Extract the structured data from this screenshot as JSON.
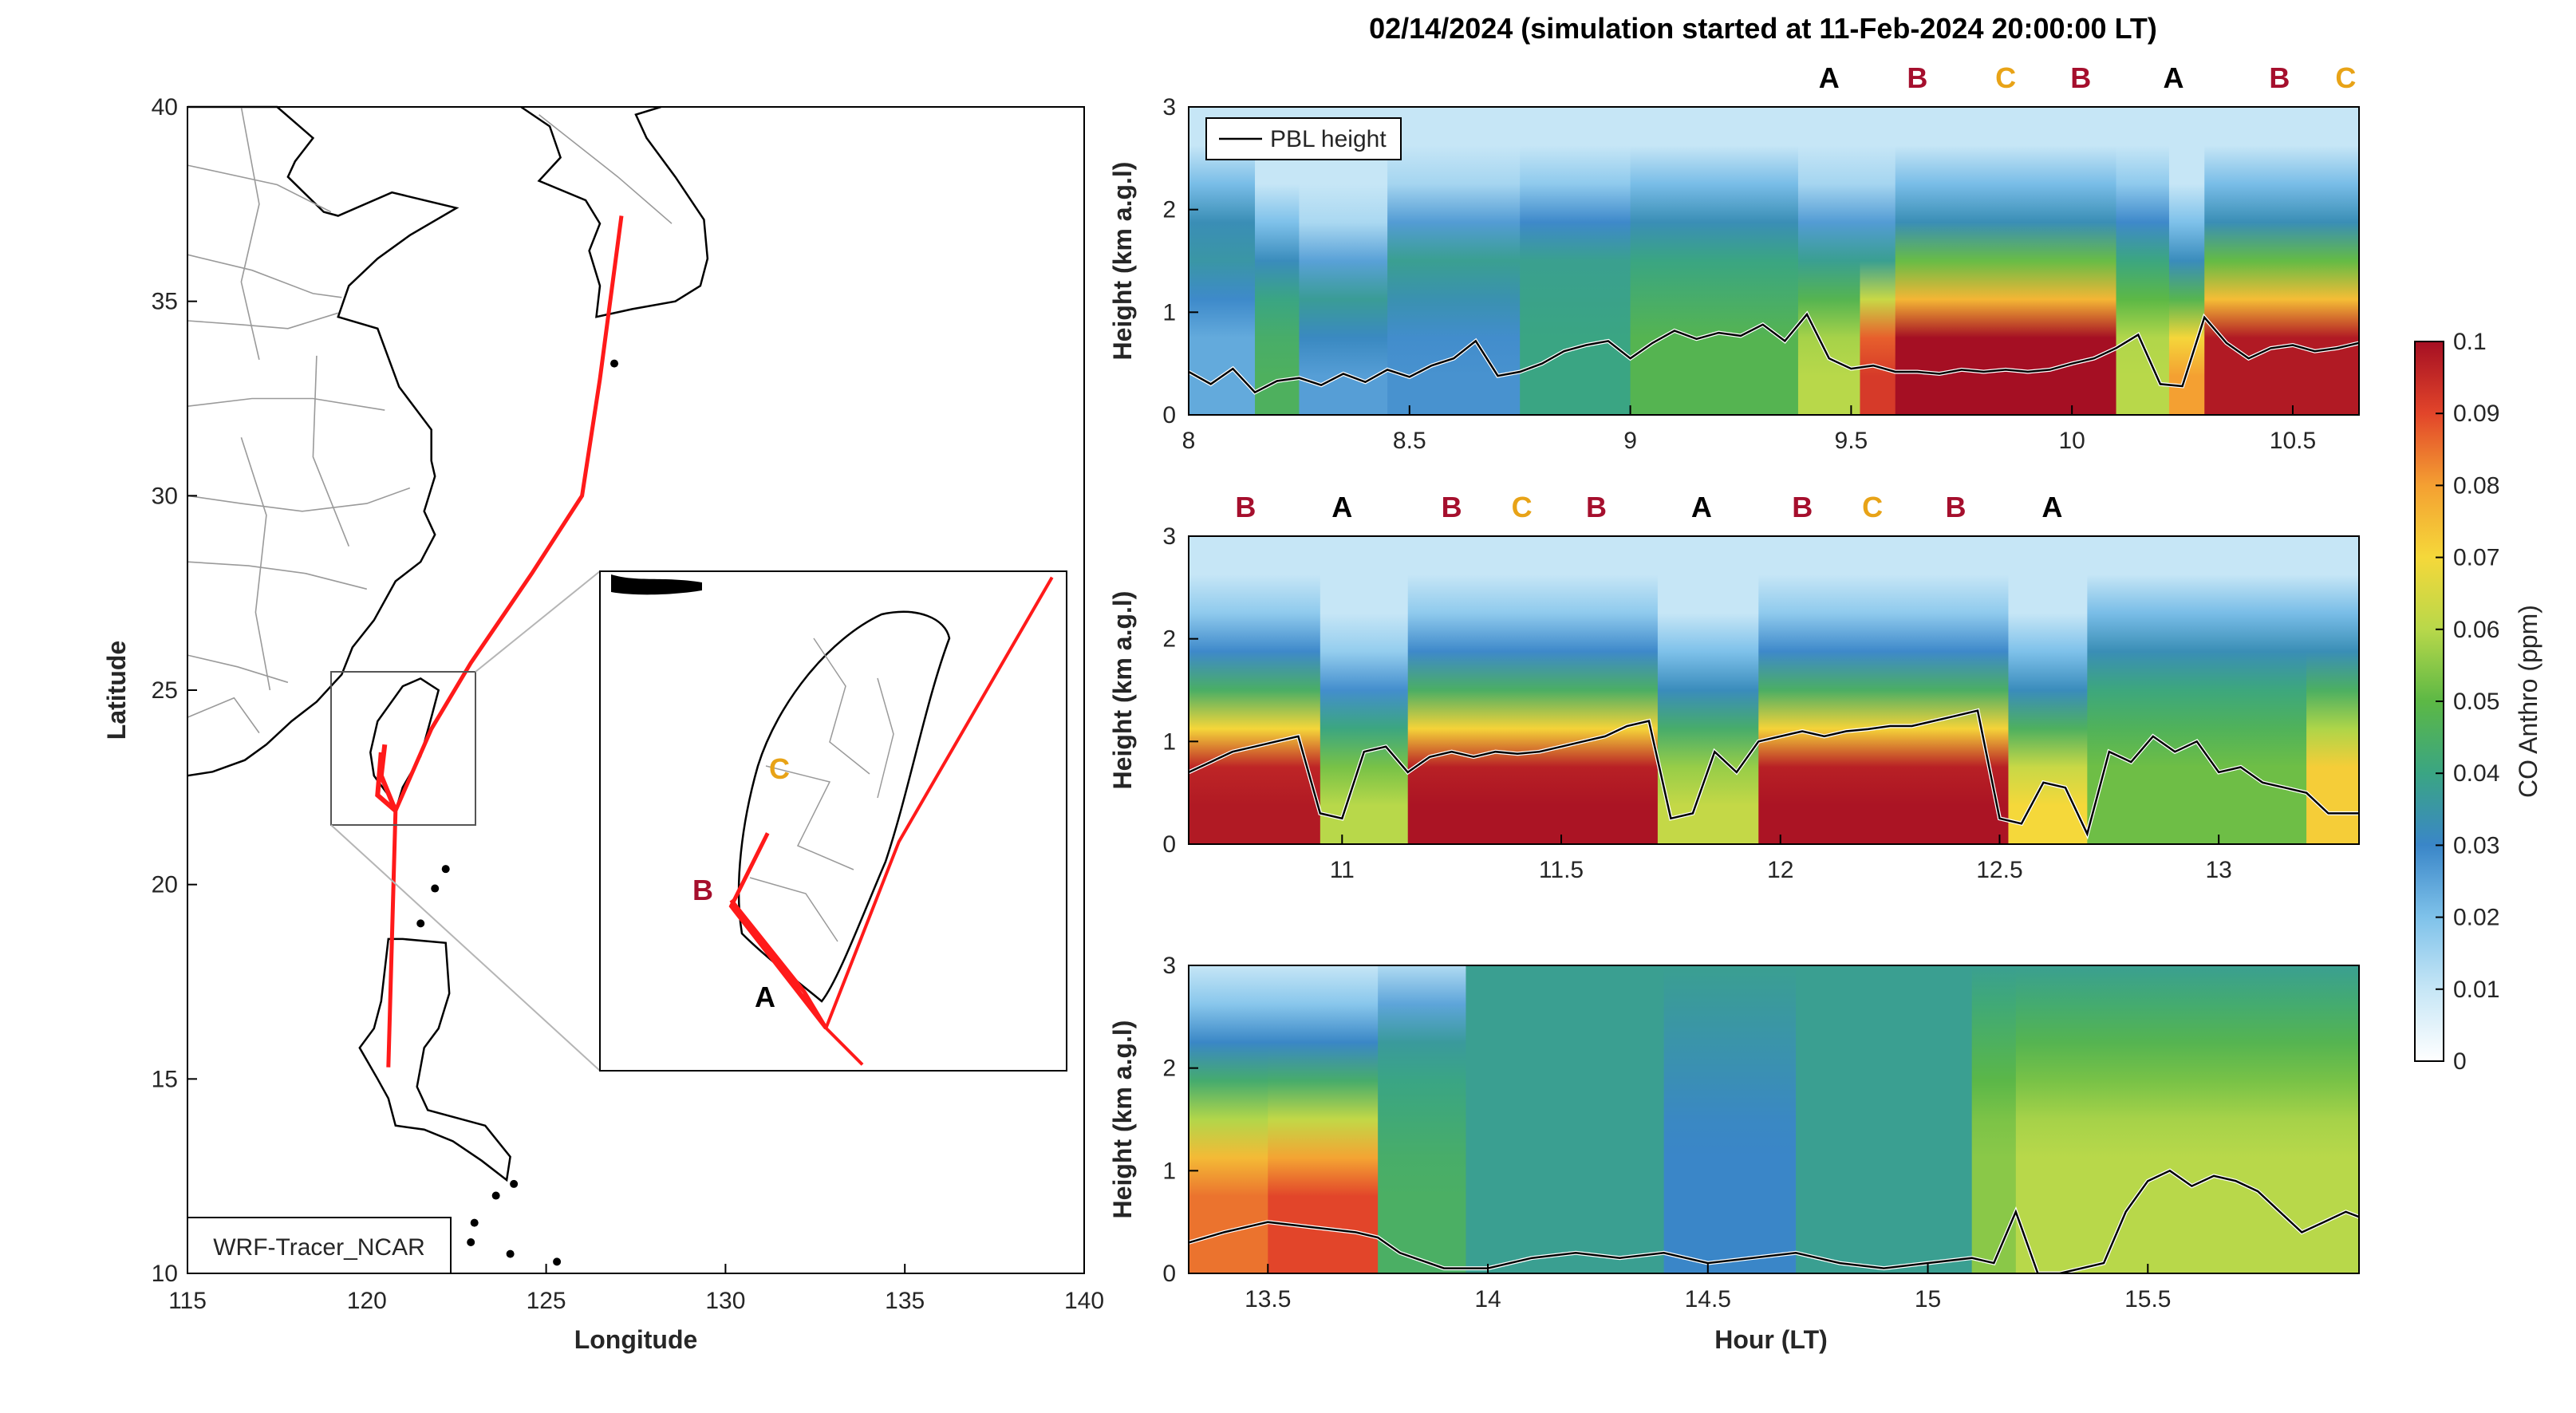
{
  "title": "02/14/2024 (simulation started at 11-Feb-2024 20:00:00 LT)",
  "colors": {
    "A": "#000000",
    "B": "#a50f2d",
    "C": "#e8a317",
    "track": "#ff1a1a",
    "land_outline": "#000000",
    "admin_boundary": "#9a9a9a"
  },
  "map": {
    "xlabel": "Longitude",
    "ylabel": "Latitude",
    "xlim": [
      115,
      140
    ],
    "ylim": [
      10,
      40
    ],
    "xticks": [
      "115",
      "120",
      "125",
      "130",
      "135",
      "140"
    ],
    "yticks": [
      "10",
      "15",
      "20",
      "25",
      "30",
      "35",
      "40"
    ],
    "label_box": "WRF-Tracer_NCAR",
    "track": [
      [
        120.6,
        15.3
      ],
      [
        120.8,
        21.9
      ],
      [
        121.8,
        24.0
      ],
      [
        122.9,
        25.7
      ],
      [
        124.6,
        28.0
      ],
      [
        126.0,
        30.0
      ],
      [
        126.5,
        33.0
      ],
      [
        127.1,
        37.2
      ]
    ],
    "branches": [
      [
        [
          120.8,
          21.9
        ],
        [
          120.4,
          22.8
        ],
        [
          120.5,
          23.6
        ]
      ],
      [
        [
          120.8,
          21.9
        ],
        [
          120.3,
          22.3
        ],
        [
          120.4,
          23.4
        ]
      ]
    ],
    "inset_letters": [
      "C",
      "B",
      "A"
    ]
  },
  "colorbar": {
    "label": "CO Anthro (ppm)",
    "ticks": [
      "0",
      "0.01",
      "0.02",
      "0.03",
      "0.04",
      "0.05",
      "0.06",
      "0.07",
      "0.08",
      "0.09",
      "0.1"
    ],
    "colors": [
      "#ffffff",
      "#c6e6f6",
      "#7fc2ea",
      "#3a86c8",
      "#3aa583",
      "#5cb845",
      "#b8d84a",
      "#f5d83a",
      "#f4a032",
      "#e2452a",
      "#a50f23"
    ]
  },
  "chart_data": [
    {
      "type": "heatmap",
      "ylabel": "Height (km a.g.l)",
      "xlim": [
        8,
        10.65
      ],
      "ylim": [
        0,
        3
      ],
      "xticks": [
        "8",
        "8.5",
        "9",
        "9.5",
        "10",
        "10.5"
      ],
      "yticks": [
        "0",
        "1",
        "2",
        "3"
      ],
      "legend": "PBL height",
      "legend_position": "top-left",
      "segments": [
        {
          "label": "A",
          "x": 9.45
        },
        {
          "label": "B",
          "x": 9.65
        },
        {
          "label": "C",
          "x": 9.85
        },
        {
          "label": "B",
          "x": 10.02
        },
        {
          "label": "A",
          "x": 10.23
        },
        {
          "label": "B",
          "x": 10.47
        },
        {
          "label": "C",
          "x": 10.62
        }
      ],
      "columns": [
        {
          "x0": 8.0,
          "x1": 8.15,
          "top": 1.7,
          "ground": 0.024
        },
        {
          "x0": 8.15,
          "x1": 8.25,
          "top": 1.3,
          "ground": 0.046
        },
        {
          "x0": 8.25,
          "x1": 8.45,
          "top": 1.1,
          "ground": 0.026
        },
        {
          "x0": 8.45,
          "x1": 8.75,
          "top": 1.5,
          "ground": 0.028
        },
        {
          "x0": 8.75,
          "x1": 9.0,
          "top": 1.6,
          "ground": 0.04
        },
        {
          "x0": 9.0,
          "x1": 9.38,
          "top": 1.7,
          "ground": 0.048
        },
        {
          "x0": 9.38,
          "x1": 9.52,
          "top": 1.5,
          "ground": 0.06
        },
        {
          "x0": 9.52,
          "x1": 9.6,
          "top": 1.5,
          "ground": 0.092
        },
        {
          "x0": 9.6,
          "x1": 10.1,
          "top": 1.7,
          "ground": 0.1
        },
        {
          "x0": 10.1,
          "x1": 10.22,
          "top": 1.6,
          "ground": 0.06
        },
        {
          "x0": 10.22,
          "x1": 10.3,
          "top": 1.3,
          "ground": 0.08
        },
        {
          "x0": 10.3,
          "x1": 10.65,
          "top": 1.7,
          "ground": 0.098
        }
      ],
      "pbl": {
        "x": [
          8.0,
          8.05,
          8.1,
          8.15,
          8.2,
          8.25,
          8.3,
          8.35,
          8.4,
          8.45,
          8.5,
          8.55,
          8.6,
          8.65,
          8.7,
          8.75,
          8.8,
          8.85,
          8.9,
          8.95,
          9.0,
          9.05,
          9.1,
          9.15,
          9.2,
          9.25,
          9.3,
          9.35,
          9.4,
          9.45,
          9.5,
          9.55,
          9.6,
          9.65,
          9.7,
          9.75,
          9.8,
          9.85,
          9.9,
          9.95,
          10.0,
          10.05,
          10.1,
          10.15,
          10.2,
          10.25,
          10.3,
          10.35,
          10.4,
          10.45,
          10.5,
          10.55,
          10.6,
          10.65
        ],
        "y": [
          0.42,
          0.3,
          0.45,
          0.22,
          0.33,
          0.36,
          0.29,
          0.4,
          0.32,
          0.44,
          0.37,
          0.48,
          0.55,
          0.72,
          0.38,
          0.42,
          0.5,
          0.62,
          0.68,
          0.72,
          0.55,
          0.7,
          0.82,
          0.74,
          0.8,
          0.77,
          0.88,
          0.72,
          0.98,
          0.55,
          0.45,
          0.48,
          0.42,
          0.42,
          0.4,
          0.44,
          0.42,
          0.44,
          0.42,
          0.44,
          0.5,
          0.55,
          0.65,
          0.78,
          0.3,
          0.28,
          0.95,
          0.7,
          0.55,
          0.65,
          0.68,
          0.62,
          0.65,
          0.7
        ]
      }
    },
    {
      "type": "heatmap",
      "ylabel": "Height (km a.g.l)",
      "xlim": [
        10.65,
        13.32
      ],
      "ylim": [
        0,
        3
      ],
      "xticks": [
        "11",
        "11.5",
        "12",
        "12.5",
        "13"
      ],
      "yticks": [
        "0",
        "1",
        "2",
        "3"
      ],
      "segments": [
        {
          "label": "B",
          "x": 10.78
        },
        {
          "label": "A",
          "x": 11.0
        },
        {
          "label": "B",
          "x": 11.25
        },
        {
          "label": "C",
          "x": 11.41
        },
        {
          "label": "B",
          "x": 11.58
        },
        {
          "label": "A",
          "x": 11.82
        },
        {
          "label": "B",
          "x": 12.05
        },
        {
          "label": "C",
          "x": 12.21
        },
        {
          "label": "B",
          "x": 12.4
        },
        {
          "label": "A",
          "x": 12.62
        }
      ],
      "columns": [
        {
          "x0": 10.65,
          "x1": 10.95,
          "top": 1.6,
          "ground": 0.098
        },
        {
          "x0": 10.95,
          "x1": 11.15,
          "top": 1.2,
          "ground": 0.06
        },
        {
          "x0": 11.15,
          "x1": 11.72,
          "top": 1.6,
          "ground": 0.099
        },
        {
          "x0": 11.72,
          "x1": 11.95,
          "top": 1.3,
          "ground": 0.062
        },
        {
          "x0": 11.95,
          "x1": 12.52,
          "top": 1.6,
          "ground": 0.099
        },
        {
          "x0": 12.52,
          "x1": 12.7,
          "top": 1.3,
          "ground": 0.07
        },
        {
          "x0": 12.7,
          "x1": 13.2,
          "top": 1.7,
          "ground": 0.052
        },
        {
          "x0": 13.2,
          "x1": 13.32,
          "top": 1.7,
          "ground": 0.072
        }
      ],
      "pbl": {
        "x": [
          10.65,
          10.7,
          10.75,
          10.8,
          10.85,
          10.9,
          10.95,
          11.0,
          11.05,
          11.1,
          11.15,
          11.2,
          11.25,
          11.3,
          11.35,
          11.4,
          11.45,
          11.5,
          11.55,
          11.6,
          11.65,
          11.7,
          11.75,
          11.8,
          11.85,
          11.9,
          11.95,
          12.0,
          12.05,
          12.1,
          12.15,
          12.2,
          12.25,
          12.3,
          12.35,
          12.4,
          12.45,
          12.5,
          12.55,
          12.6,
          12.65,
          12.7,
          12.75,
          12.8,
          12.85,
          12.9,
          12.95,
          13.0,
          13.05,
          13.1,
          13.15,
          13.2,
          13.25,
          13.32
        ],
        "y": [
          0.7,
          0.8,
          0.9,
          0.95,
          1.0,
          1.05,
          0.3,
          0.25,
          0.9,
          0.95,
          0.7,
          0.85,
          0.9,
          0.85,
          0.9,
          0.88,
          0.9,
          0.95,
          1.0,
          1.05,
          1.15,
          1.2,
          0.25,
          0.3,
          0.9,
          0.7,
          1.0,
          1.05,
          1.1,
          1.05,
          1.1,
          1.12,
          1.15,
          1.15,
          1.2,
          1.25,
          1.3,
          0.25,
          0.2,
          0.6,
          0.55,
          0.1,
          0.9,
          0.8,
          1.05,
          0.9,
          1.0,
          0.7,
          0.75,
          0.6,
          0.55,
          0.5,
          0.3,
          0.3
        ]
      }
    },
    {
      "type": "heatmap",
      "ylabel": "Height (km a.g.l)",
      "xlabel": "Hour (LT)",
      "xlim": [
        13.32,
        15.98
      ],
      "ylim": [
        0,
        3
      ],
      "xticks": [
        "13.5",
        "14",
        "14.5",
        "15",
        "15.5"
      ],
      "yticks": [
        "0",
        "1",
        "2",
        "3"
      ],
      "columns": [
        {
          "x0": 13.32,
          "x1": 13.5,
          "top": 2.0,
          "ground": 0.085
        },
        {
          "x0": 13.5,
          "x1": 13.75,
          "top": 2.0,
          "ground": 0.09
        },
        {
          "x0": 13.75,
          "x1": 13.95,
          "top": 2.2,
          "ground": 0.045
        },
        {
          "x0": 13.95,
          "x1": 14.4,
          "top": 3.0,
          "ground": 0.038
        },
        {
          "x0": 14.4,
          "x1": 14.7,
          "top": 3.0,
          "ground": 0.03
        },
        {
          "x0": 14.7,
          "x1": 15.1,
          "top": 3.0,
          "ground": 0.038
        },
        {
          "x0": 15.1,
          "x1": 15.2,
          "top": 3.0,
          "ground": 0.055
        },
        {
          "x0": 15.2,
          "x1": 15.98,
          "top": 3.0,
          "ground": 0.06
        }
      ],
      "pbl": {
        "x": [
          13.32,
          13.4,
          13.5,
          13.6,
          13.7,
          13.75,
          13.8,
          13.9,
          14.0,
          14.1,
          14.2,
          14.3,
          14.4,
          14.5,
          14.6,
          14.7,
          14.8,
          14.9,
          15.0,
          15.1,
          15.15,
          15.2,
          15.25,
          15.3,
          15.4,
          15.45,
          15.5,
          15.55,
          15.6,
          15.65,
          15.7,
          15.75,
          15.8,
          15.85,
          15.9,
          15.95,
          15.98
        ],
        "y": [
          0.3,
          0.4,
          0.5,
          0.45,
          0.4,
          0.35,
          0.2,
          0.05,
          0.05,
          0.15,
          0.2,
          0.15,
          0.2,
          0.1,
          0.15,
          0.2,
          0.1,
          0.05,
          0.1,
          0.15,
          0.1,
          0.6,
          0.0,
          0.0,
          0.1,
          0.6,
          0.9,
          1.0,
          0.85,
          0.95,
          0.9,
          0.8,
          0.6,
          0.4,
          0.5,
          0.6,
          0.55
        ]
      }
    }
  ]
}
